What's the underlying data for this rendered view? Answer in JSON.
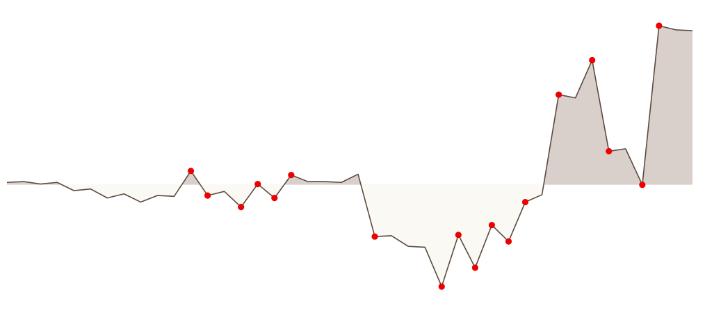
{
  "chart_data": {
    "type": "area",
    "baseline": 0,
    "ylim": [
      -150,
      230
    ],
    "x": [
      0,
      1,
      2,
      3,
      4,
      5,
      6,
      7,
      8,
      9,
      10,
      11,
      12,
      13,
      14,
      15,
      16,
      17,
      18,
      19,
      20,
      21,
      22,
      23,
      24,
      25,
      26,
      27,
      28,
      29,
      30,
      31,
      32,
      33,
      34,
      35,
      36,
      37,
      38,
      39,
      40,
      41
    ],
    "values": [
      3,
      4,
      1,
      3,
      -7,
      -5,
      -16,
      -11,
      -21,
      -13,
      -14,
      17,
      -13,
      -8,
      -27,
      1,
      -16,
      12,
      4,
      4,
      3,
      13,
      -63,
      -62,
      -75,
      -76,
      -124,
      -61,
      -101,
      -49,
      -69,
      -21,
      -12,
      110,
      106,
      152,
      41,
      44,
      0,
      194,
      189,
      188
    ],
    "highlighted_indices": [
      11,
      12,
      14,
      15,
      16,
      17,
      22,
      26,
      27,
      28,
      29,
      30,
      31,
      33,
      35,
      36,
      38,
      39
    ],
    "colors": {
      "line": "#5c4a3f",
      "positive_fill": "#d9cfcb",
      "negative_fill": "#fbf9f3",
      "point": "#ee0000"
    },
    "grid": false,
    "legend": "none"
  }
}
